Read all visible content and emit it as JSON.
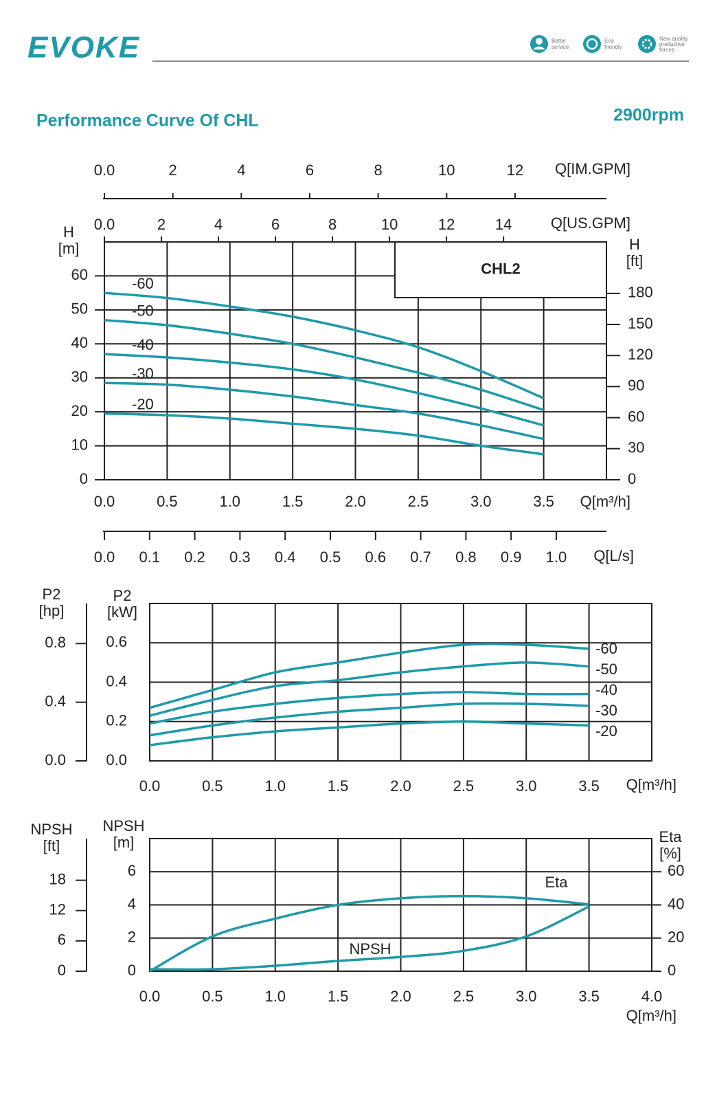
{
  "header": {
    "logo": "EVOKE",
    "badges": [
      [
        "Better",
        "service"
      ],
      [
        "Eco",
        "friendly"
      ],
      [
        "New quality",
        "productive",
        "forces"
      ]
    ],
    "title": "Performance Curve Of CHL",
    "speed": "2900rpm"
  },
  "chart_data": [
    {
      "type": "line",
      "annotation": "CHL2",
      "xlabel": "Q[m³/h]",
      "ylabel": [
        "H",
        "[m]"
      ],
      "y2label": [
        "H",
        "[ft]"
      ],
      "grid": true,
      "color": "#1f9aa8",
      "x": [
        0,
        0.5,
        1,
        1.5,
        2,
        2.5,
        3,
        3.5
      ],
      "xlim": [
        0,
        4
      ],
      "xticks": [
        {
          "value": 0,
          "label": "0.0"
        },
        0.5,
        {
          "value": 1,
          "label": "1.0"
        },
        1.5,
        {
          "value": 2,
          "label": "2.0"
        },
        2.5,
        {
          "value": 3,
          "label": "3.0"
        },
        3.5
      ],
      "ylim": [
        0,
        70
      ],
      "yticks": [
        0,
        10,
        20,
        30,
        40,
        50,
        60
      ],
      "y2lim": [
        0,
        229.66
      ],
      "y2ticks": [
        0,
        30,
        60,
        90,
        120,
        150,
        180
      ],
      "extra_axes": [
        {
          "label": "Q[US.GPM]",
          "position": "top",
          "lim": [
            0,
            17.61
          ],
          "ticks": [
            {
              "value": 0,
              "label": "0.0"
            },
            2,
            4,
            6,
            8,
            10,
            12,
            14
          ]
        },
        {
          "label": "Q[IM.GPM]",
          "position": "top-outer",
          "lim": [
            0,
            14.67
          ],
          "ticks": [
            {
              "value": 0,
              "label": "0.0"
            },
            2,
            4,
            6,
            8,
            10,
            12
          ]
        },
        {
          "label": "Q[L/s]",
          "position": "bottom-outer",
          "lim": [
            0,
            1.111
          ],
          "ticks": [
            {
              "value": 0,
              "label": "0.0"
            },
            0.1,
            0.2,
            0.3,
            0.4,
            0.5,
            0.6,
            0.7,
            0.8,
            0.9,
            {
              "value": 1,
              "label": "1.0"
            }
          ]
        }
      ],
      "series": [
        {
          "name": "-60",
          "color": "#1f9aa8",
          "values": [
            55,
            53.5,
            51,
            48,
            44,
            39,
            32,
            24
          ]
        },
        {
          "name": "-50",
          "color": "#1f9aa8",
          "values": [
            47,
            45.5,
            43,
            40,
            36,
            31.5,
            26.5,
            20.5
          ]
        },
        {
          "name": "-40",
          "color": "#1f9aa8",
          "values": [
            37,
            36,
            34.5,
            32.5,
            29.5,
            25.5,
            21,
            16
          ]
        },
        {
          "name": "-30",
          "color": "#1f9aa8",
          "values": [
            28.5,
            28,
            26.5,
            24.5,
            22,
            19.5,
            16,
            12
          ]
        },
        {
          "name": "-20",
          "color": "#1f9aa8",
          "values": [
            19.5,
            19,
            18,
            16.5,
            15,
            13,
            10,
            7.5
          ]
        }
      ]
    },
    {
      "type": "line",
      "xlabel": "Q[m³/h]",
      "ylabel": [
        "P2",
        "[kW]"
      ],
      "grid": true,
      "color": "#1f9aa8",
      "x": [
        0,
        0.5,
        1,
        1.5,
        2,
        2.5,
        3,
        3.5
      ],
      "xlim": [
        0,
        4
      ],
      "xticks": [
        {
          "value": 0,
          "label": "0.0"
        },
        0.5,
        {
          "value": 1,
          "label": "1.0"
        },
        1.5,
        {
          "value": 2,
          "label": "2.0"
        },
        2.5,
        {
          "value": 3,
          "label": "3.0"
        },
        3.5
      ],
      "ylim": [
        0,
        0.8
      ],
      "yticks": [
        {
          "value": 0,
          "label": "0.0"
        },
        0.2,
        0.4,
        0.6
      ],
      "extra_axes": [
        {
          "label": [
            "P2",
            "[hp]"
          ],
          "position": "left-outer",
          "lim": [
            0,
            1.073
          ],
          "ticks": [
            {
              "value": 0,
              "label": "0.0"
            },
            0.4,
            0.8
          ]
        }
      ],
      "series": [
        {
          "name": "-60",
          "color": "#1f9aa8",
          "values": [
            0.27,
            0.36,
            0.45,
            0.5,
            0.55,
            0.59,
            0.59,
            0.57
          ]
        },
        {
          "name": "-50",
          "color": "#1f9aa8",
          "values": [
            0.23,
            0.31,
            0.38,
            0.41,
            0.45,
            0.48,
            0.5,
            0.48
          ]
        },
        {
          "name": "-40",
          "color": "#1f9aa8",
          "values": [
            0.19,
            0.25,
            0.29,
            0.32,
            0.34,
            0.35,
            0.34,
            0.34
          ]
        },
        {
          "name": "-30",
          "color": "#1f9aa8",
          "values": [
            0.13,
            0.18,
            0.22,
            0.25,
            0.27,
            0.29,
            0.29,
            0.28
          ]
        },
        {
          "name": "-20",
          "color": "#1f9aa8",
          "values": [
            0.08,
            0.12,
            0.15,
            0.17,
            0.19,
            0.2,
            0.19,
            0.18
          ]
        }
      ]
    },
    {
      "type": "line",
      "xlabel": "Q[m³/h]",
      "ylabel": [
        "NPSH",
        "[m]"
      ],
      "y2label": [
        "Eta",
        "[%]"
      ],
      "grid": true,
      "color": "#1f9aa8",
      "x": [
        0,
        0.5,
        1,
        1.5,
        2,
        2.5,
        3,
        3.5
      ],
      "xlim": [
        0,
        4
      ],
      "xticks": [
        {
          "value": 0,
          "label": "0.0"
        },
        0.5,
        {
          "value": 1,
          "label": "1.0"
        },
        1.5,
        {
          "value": 2,
          "label": "2.0"
        },
        2.5,
        {
          "value": 3,
          "label": "3.0"
        },
        3.5,
        {
          "value": 4,
          "label": "4.0"
        }
      ],
      "ylim": [
        0,
        8
      ],
      "yticks": [
        0,
        2,
        4,
        6
      ],
      "y2lim": [
        0,
        80
      ],
      "y2ticks": [
        0,
        20,
        40,
        60
      ],
      "extra_axes": [
        {
          "label": [
            "NPSH",
            "[ft]"
          ],
          "position": "left-outer",
          "lim": [
            0,
            26.25
          ],
          "ticks": [
            0,
            6,
            12,
            18
          ]
        }
      ],
      "series": [
        {
          "name": "Eta",
          "color": "#1f9aa8",
          "axis": "y2",
          "values": [
            0,
            21,
            31.7,
            40,
            44,
            45.3,
            44,
            40.3
          ]
        },
        {
          "name": "NPSH",
          "color": "#1f9aa8",
          "values": [
            0.12,
            0.12,
            0.33,
            0.62,
            0.86,
            1.23,
            2.1,
            3.9
          ]
        }
      ]
    }
  ]
}
